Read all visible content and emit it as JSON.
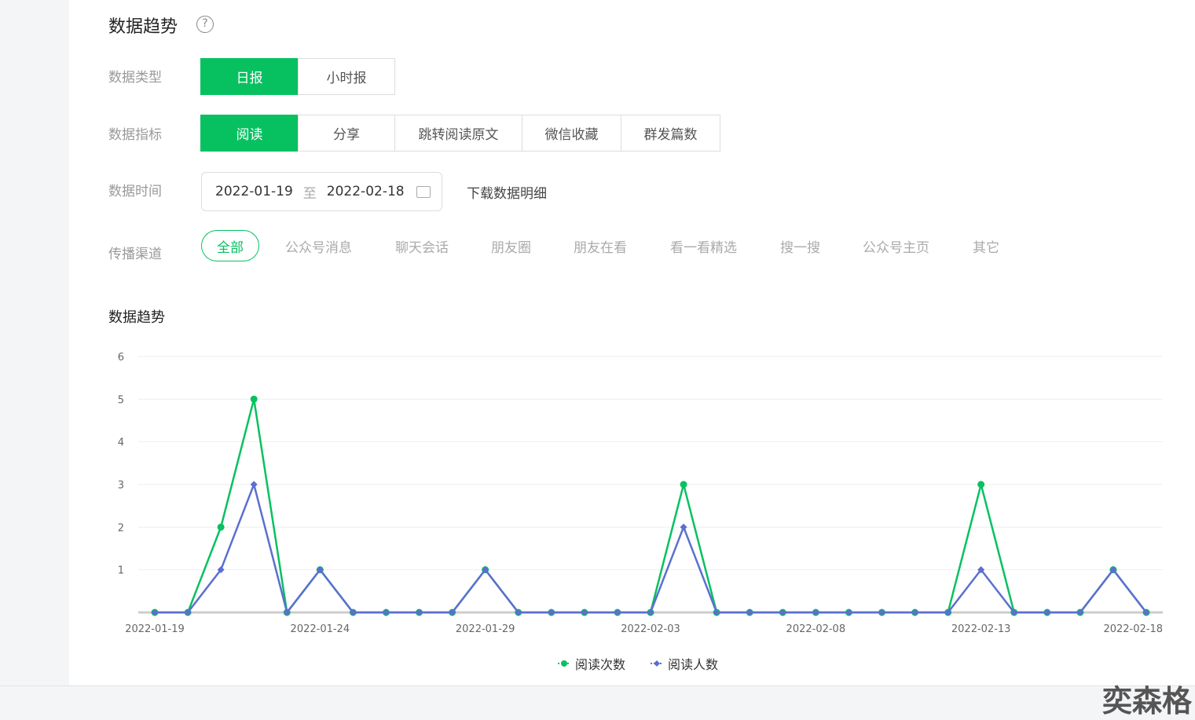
{
  "page_title": "数据趋势",
  "help_icon": "question-circle-icon",
  "rows": {
    "type": {
      "label": "数据类型",
      "options": [
        "日报",
        "小时报"
      ],
      "selected": "日报"
    },
    "metric": {
      "label": "数据指标",
      "options": [
        "阅读",
        "分享",
        "跳转阅读原文",
        "微信收藏",
        "群发篇数"
      ],
      "selected": "阅读"
    },
    "time": {
      "label": "数据时间",
      "start": "2022-01-19",
      "sep": "至",
      "end": "2022-02-18",
      "download": "下载数据明细"
    },
    "channel": {
      "label": "传播渠道",
      "options": [
        "全部",
        "公众号消息",
        "聊天会话",
        "朋友圈",
        "朋友在看",
        "看一看精选",
        "搜一搜",
        "公众号主页",
        "其它"
      ],
      "selected": "全部"
    }
  },
  "chart_title": "数据趋势",
  "watermark": "奕森格",
  "colors": {
    "accent": "#07c160",
    "series2": "#5b6fcf"
  },
  "chart_data": {
    "type": "line",
    "x": [
      "2022-01-19",
      "2022-01-20",
      "2022-01-21",
      "2022-01-22",
      "2022-01-23",
      "2022-01-24",
      "2022-01-25",
      "2022-01-26",
      "2022-01-27",
      "2022-01-28",
      "2022-01-29",
      "2022-01-30",
      "2022-01-31",
      "2022-02-01",
      "2022-02-02",
      "2022-02-03",
      "2022-02-04",
      "2022-02-05",
      "2022-02-06",
      "2022-02-07",
      "2022-02-08",
      "2022-02-09",
      "2022-02-10",
      "2022-02-11",
      "2022-02-12",
      "2022-02-13",
      "2022-02-14",
      "2022-02-15",
      "2022-02-16",
      "2022-02-17",
      "2022-02-18"
    ],
    "x_tick_labels": [
      "2022-01-19",
      "2022-01-24",
      "2022-01-29",
      "2022-02-03",
      "2022-02-08",
      "2022-02-13",
      "2022-02-18"
    ],
    "y_ticks": [
      1,
      2,
      3,
      4,
      5,
      6
    ],
    "ylim": [
      0,
      6
    ],
    "grid": true,
    "legend_placement": "bottom",
    "series": [
      {
        "name": "阅读次数",
        "color": "#07c160",
        "marker": "circle",
        "values": [
          0,
          0,
          2,
          5,
          0,
          1,
          0,
          0,
          0,
          0,
          1,
          0,
          0,
          0,
          0,
          0,
          3,
          0,
          0,
          0,
          0,
          0,
          0,
          0,
          0,
          3,
          0,
          0,
          0,
          1,
          0
        ]
      },
      {
        "name": "阅读人数",
        "color": "#5b6fcf",
        "marker": "diamond",
        "values": [
          0,
          0,
          1,
          3,
          0,
          1,
          0,
          0,
          0,
          0,
          1,
          0,
          0,
          0,
          0,
          0,
          2,
          0,
          0,
          0,
          0,
          0,
          0,
          0,
          0,
          1,
          0,
          0,
          0,
          1,
          0
        ]
      }
    ]
  }
}
